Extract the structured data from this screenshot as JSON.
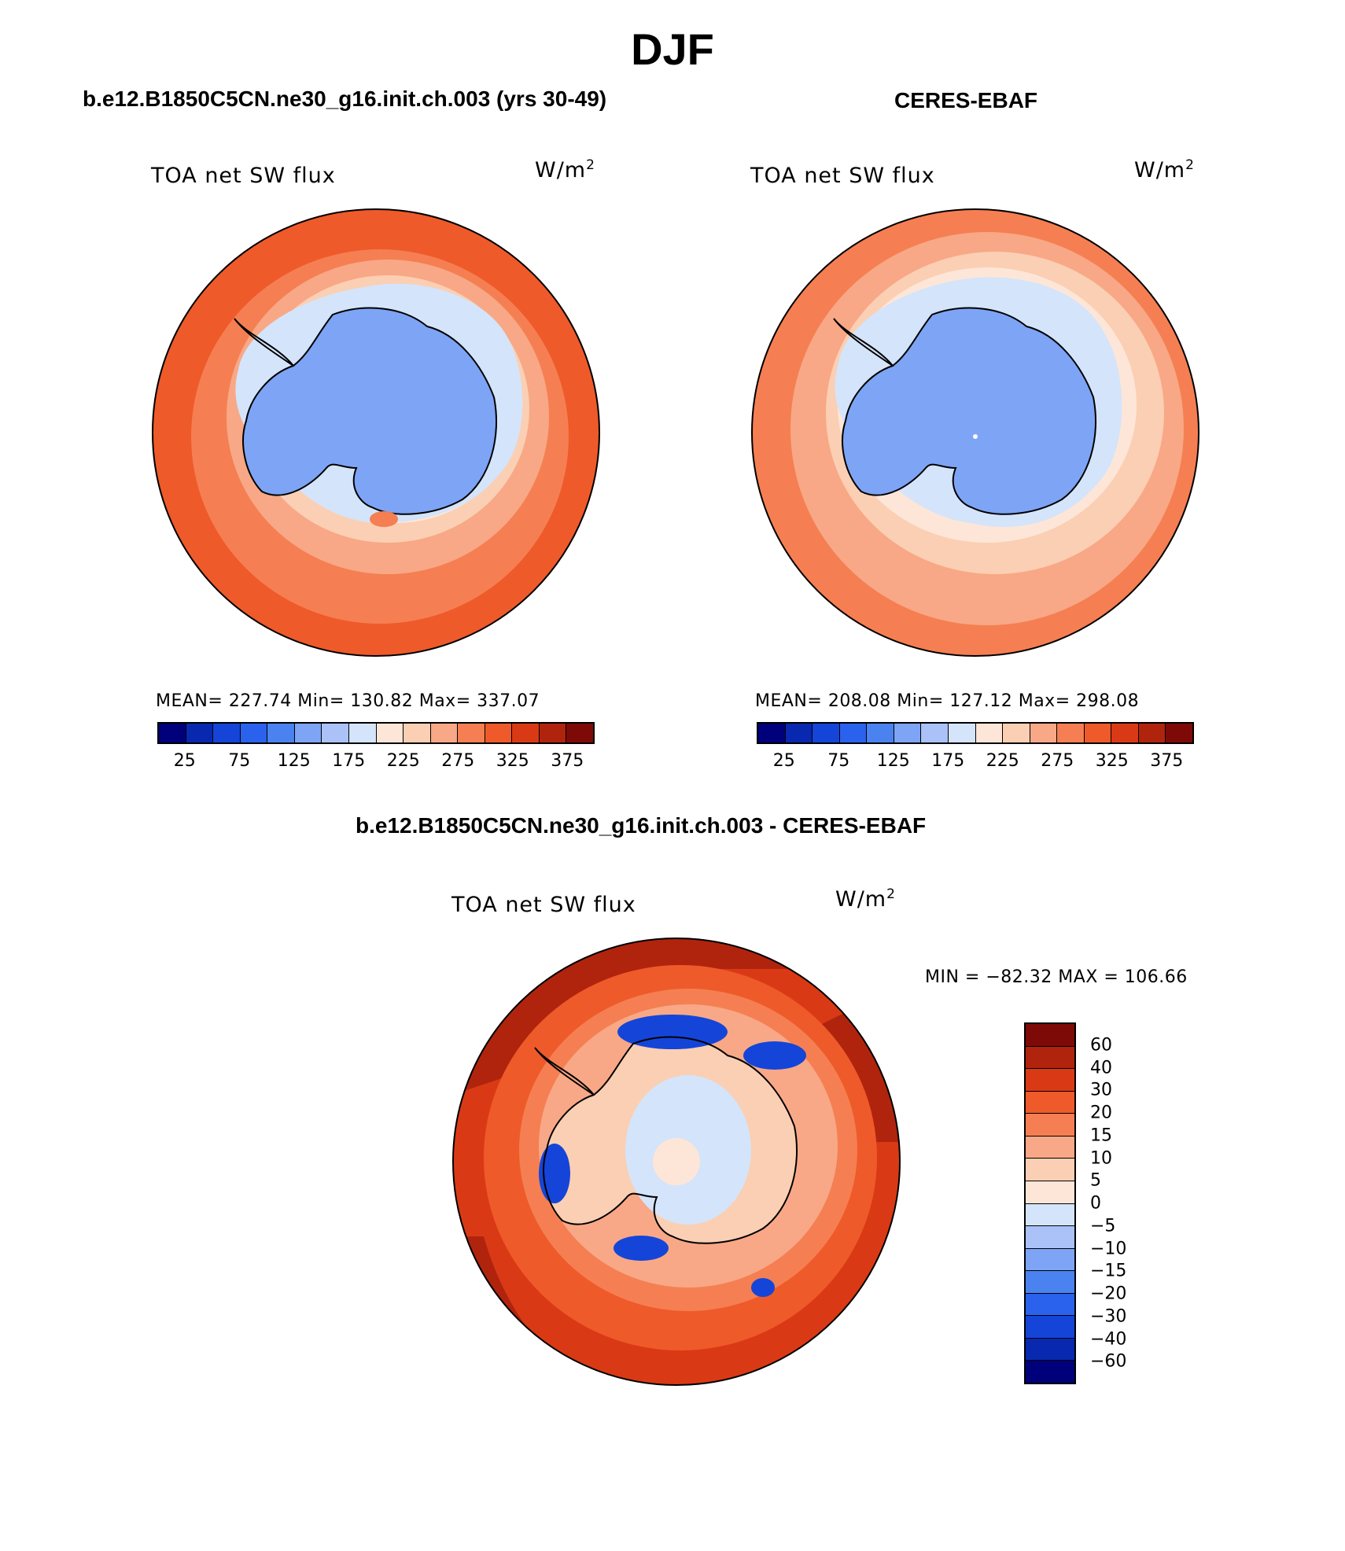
{
  "page_title": "DJF",
  "panels": {
    "left": {
      "title": "b.e12.B1850C5CN.ne30_g16.init.ch.003 (yrs 30-49)",
      "variable": "TOA net SW flux",
      "units": "W/m",
      "units_sup": "2",
      "stats": "MEAN= 227.74   Min= 130.82   Max= 337.07"
    },
    "right": {
      "title": "CERES-EBAF",
      "variable": "TOA net SW flux",
      "units": "W/m",
      "units_sup": "2",
      "stats": "MEAN= 208.08   Min= 127.12   Max= 298.08"
    },
    "diff": {
      "title": "b.e12.B1850C5CN.ne30_g16.init.ch.003 - CERES-EBAF",
      "variable": "TOA net SW flux",
      "units": "W/m",
      "units_sup": "2",
      "minmax": "MIN = −82.32 MAX = 106.66"
    }
  },
  "colorbar_abs": {
    "colors": [
      "#00007a",
      "#0828b0",
      "#1445d8",
      "#2a62ee",
      "#4a82f0",
      "#7ea4f5",
      "#aac2f7",
      "#d4e4fa",
      "#fde6d8",
      "#fbcfb3",
      "#f8a886",
      "#f57f52",
      "#ef5a2a",
      "#d93a15",
      "#b0240e",
      "#7e0a08"
    ],
    "tick_labels": [
      "25",
      "75",
      "125",
      "175",
      "225",
      "275",
      "325",
      "375"
    ]
  },
  "colorbar_diff": {
    "colors": [
      "#7e0a08",
      "#b0240e",
      "#d93a15",
      "#ef5a2a",
      "#f57f52",
      "#f8a886",
      "#fbcfb3",
      "#fde6d8",
      "#d4e4fa",
      "#aac2f7",
      "#7ea4f5",
      "#4a82f0",
      "#2a62ee",
      "#1445d8",
      "#0828b0",
      "#00007a"
    ],
    "tick_labels": [
      "60",
      "40",
      "30",
      "20",
      "15",
      "10",
      "5",
      "0",
      "−5",
      "−10",
      "−15",
      "−20",
      "−30",
      "−40",
      "−60"
    ]
  },
  "map_colors": {
    "ocean_hi": "#ef5a2a",
    "ocean_mid": "#f57f52",
    "ocean_low": "#f8a886",
    "ocean_pale": "#fbcfb3",
    "ice_edge": "#fde6d8",
    "ice_light": "#d4e4fa",
    "land": "#7ea4f5",
    "diff_strong": "#d93a15",
    "diff_darkest": "#b0240e",
    "diff_neg": "#1445d8"
  }
}
